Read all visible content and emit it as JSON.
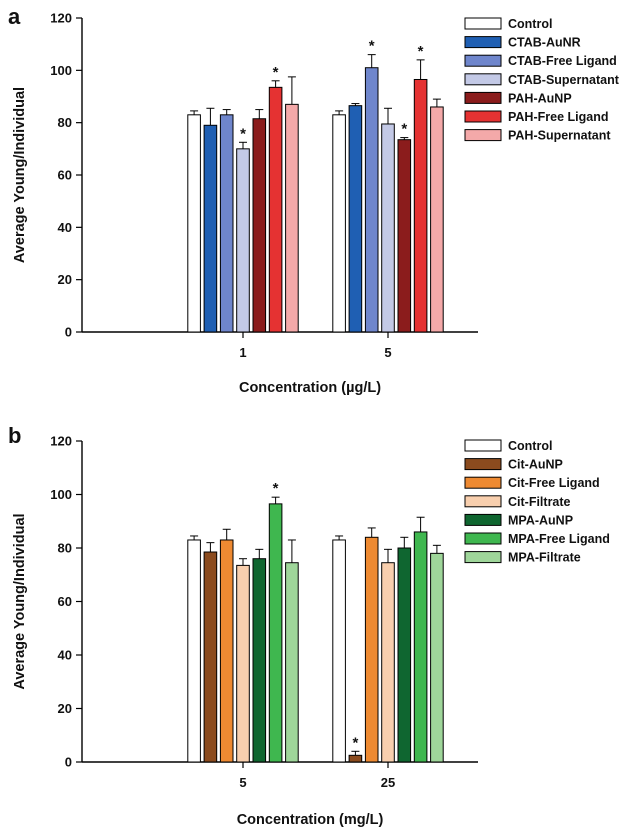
{
  "panels": [
    {
      "letter": "a",
      "chart_data": {
        "type": "bar",
        "categories": [
          "1",
          "5"
        ],
        "xlabel": "Concentration (µg/L)",
        "ylabel": "Average Young/Individual",
        "ylim": [
          0,
          120
        ],
        "yticks": [
          0,
          20,
          40,
          60,
          80,
          100,
          120
        ],
        "grid": false,
        "legend_position": "top-right",
        "significance_marker": "*",
        "series": [
          {
            "name": "Control",
            "color": "#ffffff",
            "values": [
              83,
              83
            ],
            "errors": [
              1.5,
              1.5
            ],
            "significant": [
              false,
              false
            ]
          },
          {
            "name": "CTAB-AuNR",
            "color": "#1f5fb3",
            "values": [
              79,
              86.5
            ],
            "errors": [
              6.5,
              0.8
            ],
            "significant": [
              false,
              false
            ]
          },
          {
            "name": "CTAB-Free Ligand",
            "color": "#6f86cc",
            "values": [
              83,
              101
            ],
            "errors": [
              2,
              5
            ],
            "significant": [
              false,
              true
            ]
          },
          {
            "name": "CTAB-Supernatant",
            "color": "#c3c9e6",
            "values": [
              70,
              79.5
            ],
            "errors": [
              2.5,
              6
            ],
            "significant": [
              true,
              false
            ]
          },
          {
            "name": "PAH-AuNP",
            "color": "#8b1c1c",
            "values": [
              81.5,
              73.5
            ],
            "errors": [
              3.5,
              0.8
            ],
            "significant": [
              false,
              true
            ]
          },
          {
            "name": "PAH-Free Ligand",
            "color": "#e53232",
            "values": [
              93.5,
              96.5
            ],
            "errors": [
              2.5,
              7.5
            ],
            "significant": [
              true,
              true
            ]
          },
          {
            "name": "PAH-Supernatant",
            "color": "#f4a9a9",
            "values": [
              87,
              86
            ],
            "errors": [
              10.5,
              3
            ],
            "significant": [
              false,
              false
            ]
          }
        ]
      }
    },
    {
      "letter": "b",
      "chart_data": {
        "type": "bar",
        "categories": [
          "5",
          "25"
        ],
        "xlabel": "Concentration (mg/L)",
        "ylabel": "Average Young/Individual",
        "ylim": [
          0,
          120
        ],
        "yticks": [
          0,
          20,
          40,
          60,
          80,
          100,
          120
        ],
        "grid": false,
        "legend_position": "top-right",
        "significance_marker": "*",
        "series": [
          {
            "name": "Control",
            "color": "#ffffff",
            "values": [
              83,
              83
            ],
            "errors": [
              1.5,
              1.5
            ],
            "significant": [
              false,
              false
            ]
          },
          {
            "name": "Cit-AuNP",
            "color": "#8b4b1e",
            "values": [
              78.5,
              2.5
            ],
            "errors": [
              3.5,
              1.5
            ],
            "significant": [
              false,
              true
            ]
          },
          {
            "name": "Cit-Free Ligand",
            "color": "#ee8a32",
            "values": [
              83,
              84
            ],
            "errors": [
              4,
              3.5
            ],
            "significant": [
              false,
              false
            ]
          },
          {
            "name": "Cit-Filtrate",
            "color": "#f8cfae",
            "values": [
              73.5,
              74.5
            ],
            "errors": [
              2.5,
              5
            ],
            "significant": [
              false,
              false
            ]
          },
          {
            "name": "MPA-AuNP",
            "color": "#0f6630",
            "values": [
              76,
              80
            ],
            "errors": [
              3.5,
              4
            ],
            "significant": [
              false,
              false
            ]
          },
          {
            "name": "MPA-Free Ligand",
            "color": "#3fb74f",
            "values": [
              96.5,
              86
            ],
            "errors": [
              2.5,
              5.5
            ],
            "significant": [
              true,
              false
            ]
          },
          {
            "name": "MPA-Filtrate",
            "color": "#9fd69a",
            "values": [
              74.5,
              78
            ],
            "errors": [
              8.5,
              3
            ],
            "significant": [
              false,
              false
            ]
          }
        ]
      }
    }
  ]
}
